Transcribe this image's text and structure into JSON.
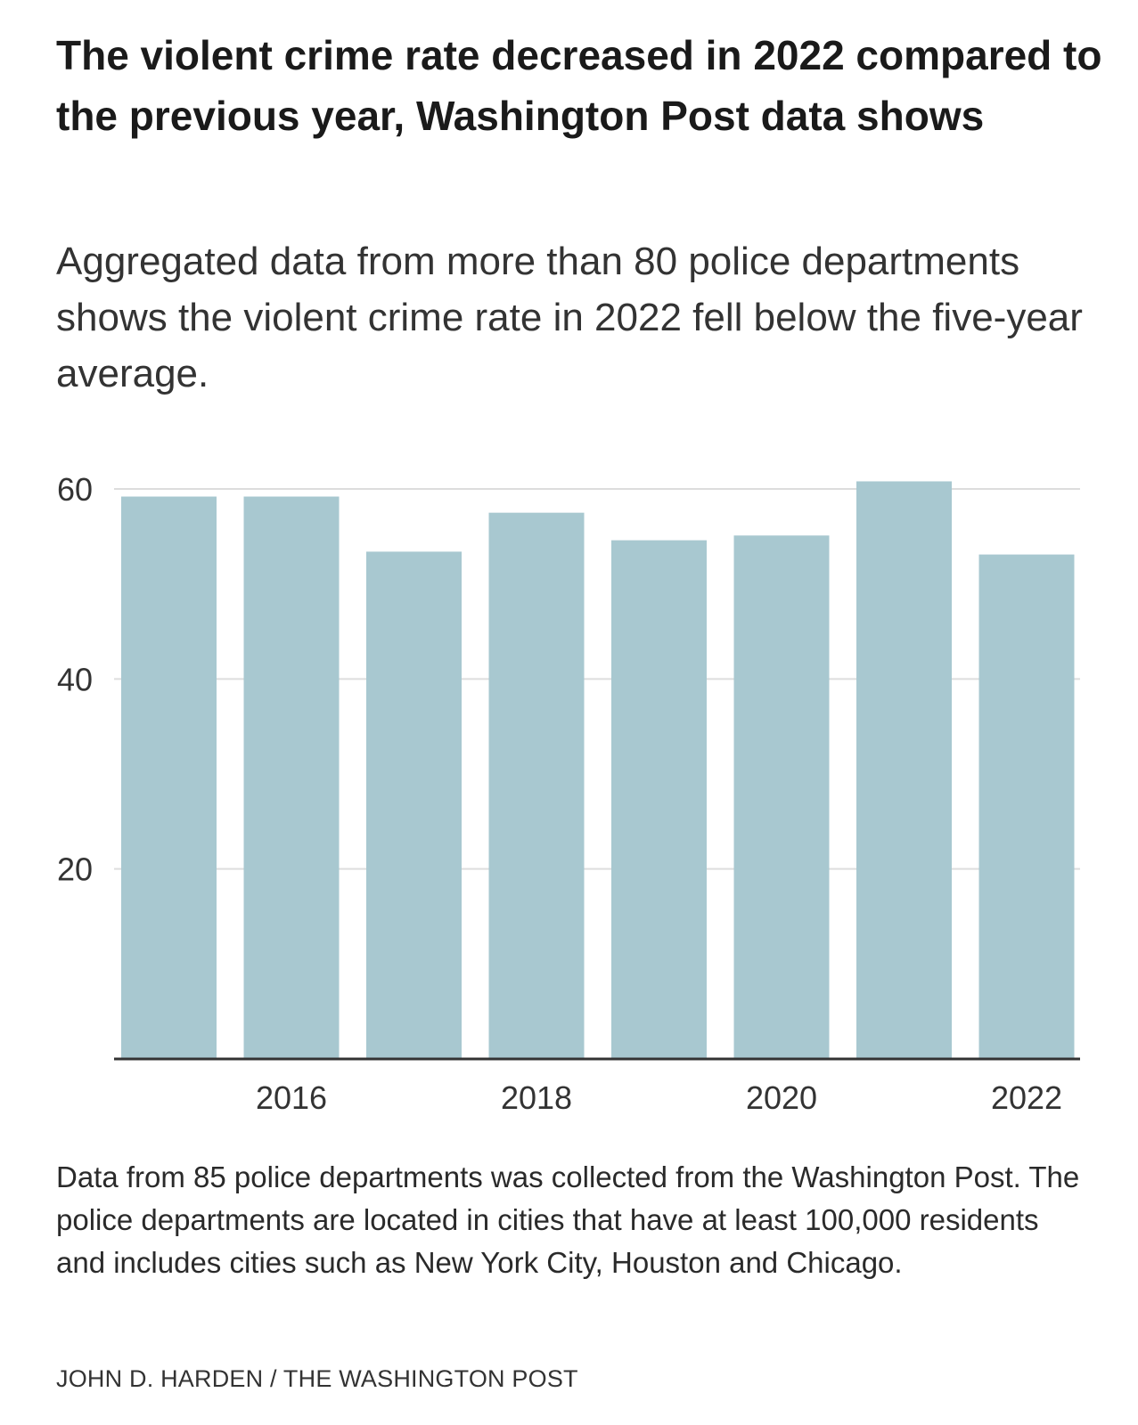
{
  "title": "The violent crime rate decreased in 2022 compared to the previous year, Washington Post data shows",
  "subtitle": "Aggregated data from more than 80 police departments shows the violent crime rate in 2022 fell below the five-year average.",
  "note": "Data from 85 police departments was collected from the Washington Post. The police departments are located in cities that have at least 100,000 residents and includes cities such as New York City, Houston and Chicago.",
  "credit": "JOHN D. HARDEN / THE WASHINGTON POST",
  "chart_data": {
    "type": "bar",
    "categories": [
      "2015",
      "2016",
      "2017",
      "2018",
      "2019",
      "2020",
      "2021",
      "2022"
    ],
    "values": [
      59.2,
      59.2,
      53.4,
      57.5,
      54.6,
      55.1,
      60.8,
      53.1
    ],
    "x_tick_labels": [
      "2016",
      "2018",
      "2020",
      "2022"
    ],
    "y_ticks": [
      20,
      40,
      60
    ],
    "ylim": [
      0,
      60
    ],
    "grid": true,
    "title": "",
    "xlabel": "",
    "ylabel": "",
    "bar_color": "#a8c8d0",
    "grid_color": "#dddddd",
    "axis_color": "#333333"
  }
}
